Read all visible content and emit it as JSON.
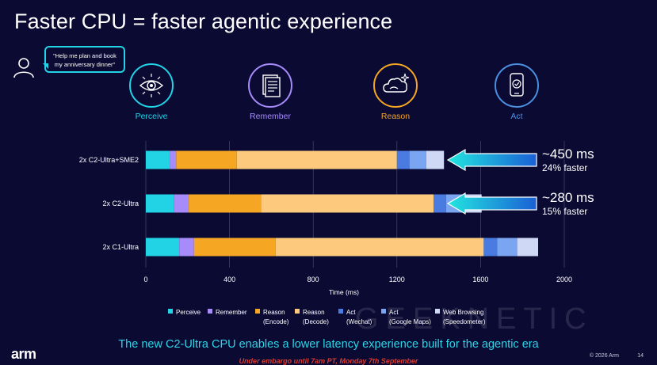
{
  "header": {
    "title": "Faster CPU = faster agentic experience"
  },
  "prompt": {
    "line1": "\"Help me plan and book",
    "line2": "my anniversary dinner\""
  },
  "stages": [
    {
      "label": "Perceive",
      "icon": "eye-icon",
      "color": "#22d3e6"
    },
    {
      "label": "Remember",
      "icon": "document-icon",
      "color": "#a78bfa"
    },
    {
      "label": "Reason",
      "icon": "cloud-sparkle-icon",
      "color": "#f5a623"
    },
    {
      "label": "Act",
      "icon": "phone-check-icon",
      "color": "#4a90e2"
    }
  ],
  "chart_data": {
    "type": "bar",
    "orientation": "horizontal",
    "stacked": true,
    "categories": [
      "2x C2-Ultra+SME2",
      "2x C2-Ultra",
      "2x C1-Ultra"
    ],
    "xlabel": "Time (ms)",
    "xlim": [
      0,
      2000
    ],
    "xticks": [
      0,
      400,
      800,
      1200,
      1600,
      2000
    ],
    "grid": true,
    "legend_position": "bottom",
    "series": [
      {
        "name": "Perceive",
        "color": "#22d3e6",
        "values": [
          115,
          135,
          160
        ]
      },
      {
        "name": "Remember",
        "color": "#a78bfa",
        "values": [
          30,
          70,
          70
        ]
      },
      {
        "name": "Reason (Encode)",
        "color": "#f5a623",
        "values": [
          290,
          345,
          390
        ]
      },
      {
        "name": "Reason (Decode)",
        "color": "#fdc97c",
        "values": [
          765,
          825,
          995
        ]
      },
      {
        "name": "Act (Wechat)",
        "color": "#4a7be0",
        "values": [
          60,
          60,
          65
        ]
      },
      {
        "name": "Act (Google Maps)",
        "color": "#7aa5f0",
        "values": [
          80,
          85,
          95
        ]
      },
      {
        "name": "Web Browsing (Speedometer)",
        "color": "#cfd8f5",
        "values": [
          85,
          85,
          100
        ]
      }
    ],
    "annotations": [
      {
        "category": "2x C2-Ultra+SME2",
        "big": "~450 ms",
        "small": "24% faster"
      },
      {
        "category": "2x C2-Ultra",
        "big": "~280 ms",
        "small": "15% faster"
      }
    ]
  },
  "legend": [
    {
      "line1": "Perceive",
      "line2": ""
    },
    {
      "line1": "Remember",
      "line2": ""
    },
    {
      "line1": "Reason",
      "line2": "(Encode)"
    },
    {
      "line1": "Reason",
      "line2": "(Decode)"
    },
    {
      "line1": "Act",
      "line2": "(Wechat)"
    },
    {
      "line1": "Act",
      "line2": "(Google Maps)"
    },
    {
      "line1": "Web Browsing",
      "line2": "(Speedometer)"
    }
  ],
  "footer": {
    "tagline": "The new C2-Ultra CPU enables a lower latency experience built for the agentic era",
    "embargo": "Under embargo until 7am PT, Monday 7th September",
    "brand": "arm",
    "copyright": "© 2026 Arm",
    "page": "14",
    "watermark": "GEEKNETIC"
  }
}
